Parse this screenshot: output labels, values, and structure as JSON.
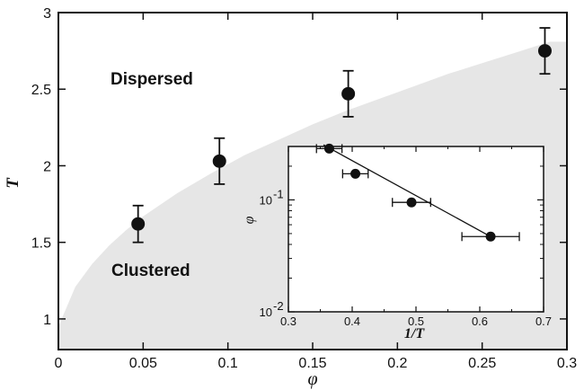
{
  "chart_data": [
    {
      "type": "scatter",
      "xlabel": "φ",
      "ylabel": "T",
      "xlim": [
        0,
        0.3
      ],
      "ylim": [
        0.8,
        3.0
      ],
      "xticks": [
        0,
        0.05,
        0.1,
        0.15,
        0.2,
        0.25,
        0.3
      ],
      "xtick_labels": [
        "0",
        "0.05",
        "0.1",
        "0.15",
        "0.2",
        "0.25",
        "0.3"
      ],
      "yticks": [
        1.0,
        1.5,
        2.0,
        2.5,
        3.0
      ],
      "ytick_labels": [
        "1",
        "1.5",
        "2",
        "2.5",
        "3"
      ],
      "points": [
        {
          "x": 0.047,
          "y": 1.62,
          "yerr": 0.12
        },
        {
          "x": 0.095,
          "y": 2.03,
          "yerr": 0.15
        },
        {
          "x": 0.171,
          "y": 2.47,
          "yerr": 0.15
        },
        {
          "x": 0.287,
          "y": 2.75,
          "yerr": 0.15
        }
      ],
      "boundary_curve": {
        "phi": [
          0,
          0.01,
          0.02,
          0.03,
          0.04,
          0.05,
          0.07,
          0.09,
          0.11,
          0.13,
          0.15,
          0.17,
          0.19,
          0.21,
          0.23,
          0.25,
          0.27,
          0.29
        ],
        "T": [
          0.95,
          1.21,
          1.36,
          1.48,
          1.58,
          1.67,
          1.82,
          1.95,
          2.07,
          2.17,
          2.27,
          2.36,
          2.44,
          2.52,
          2.6,
          2.67,
          2.74,
          2.81
        ]
      },
      "region_labels": {
        "upper": "Dispersed",
        "lower": "Clustered"
      },
      "shade_color": "#e6e6e6"
    },
    {
      "type": "scatter",
      "xlabel": "1/T",
      "ylabel": "φ",
      "xlim": [
        0.3,
        0.7
      ],
      "ylim": [
        0.01,
        0.3
      ],
      "yscale": "log",
      "xticks": [
        0.3,
        0.4,
        0.5,
        0.6,
        0.7
      ],
      "xtick_labels": [
        "0.3",
        "0.4",
        "0.5",
        "0.6",
        "0.7"
      ],
      "yticks": [
        0.01,
        0.1
      ],
      "ytick_labels": [
        {
          "base": "10",
          "exp": "-2"
        },
        {
          "base": "10",
          "exp": "-1"
        }
      ],
      "points": [
        {
          "x": 0.364,
          "y": 0.287,
          "xerr": 0.02
        },
        {
          "x": 0.405,
          "y": 0.171,
          "xerr": 0.02
        },
        {
          "x": 0.493,
          "y": 0.095,
          "xerr": 0.03
        },
        {
          "x": 0.617,
          "y": 0.047,
          "xerr": 0.045
        }
      ],
      "fit_line": {
        "x": [
          0.355,
          0.617
        ],
        "y": [
          0.31,
          0.047
        ]
      }
    }
  ]
}
